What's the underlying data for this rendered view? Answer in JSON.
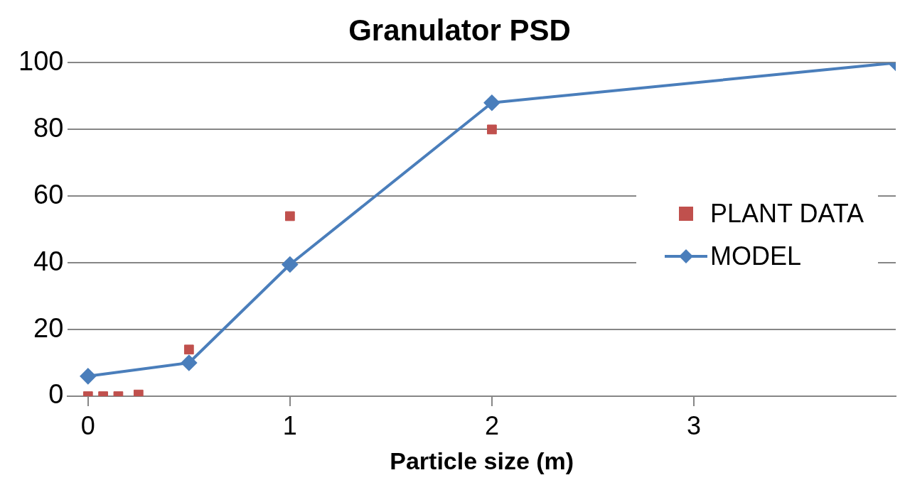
{
  "chart_data": {
    "type": "scatter",
    "title": "Granulator PSD",
    "xlabel": "Particle size (m)",
    "xlim": [
      -0.1,
      4
    ],
    "xticks": [
      0,
      1,
      2,
      3
    ],
    "ylim": [
      0,
      100
    ],
    "yticks": [
      0,
      20,
      40,
      60,
      80,
      100
    ],
    "grid": "y",
    "legend": "right",
    "series": [
      {
        "name": "PLANT DATA",
        "type": "scatter",
        "marker": "square",
        "color": "#c0504d",
        "x": [
          0,
          0.075,
          0.15,
          0.25,
          0.5,
          1,
          2
        ],
        "values": [
          0,
          0,
          0,
          0.5,
          14,
          54,
          80
        ]
      },
      {
        "name": "MODEL",
        "type": "line",
        "marker": "diamond",
        "color": "#4a7ebb",
        "x": [
          0,
          0.5,
          1,
          2,
          4
        ],
        "values": [
          6,
          10,
          39.5,
          88,
          100
        ]
      }
    ]
  }
}
